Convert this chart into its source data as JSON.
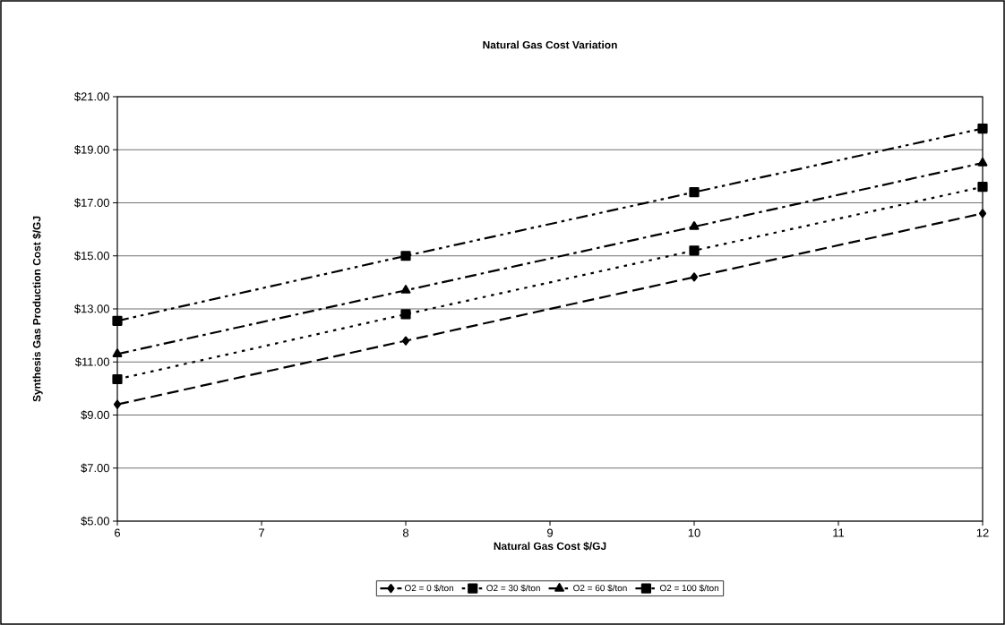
{
  "chart_data": {
    "type": "line",
    "title": "Natural Gas Cost Variation",
    "xlabel": "Natural Gas Cost $/GJ",
    "ylabel": "Synthesis Gas  Production Cost $/GJ",
    "x": [
      6,
      8,
      10,
      12
    ],
    "series": [
      {
        "name": "O2 = 0 $/ton",
        "color": "#000000",
        "marker": "diamond",
        "line_style": "dashed",
        "values": [
          9.4,
          11.8,
          14.2,
          16.6
        ]
      },
      {
        "name": "O2 = 30 $/ton",
        "color": "#000000",
        "marker": "square",
        "line_style": "dotted",
        "values": [
          10.35,
          12.8,
          15.2,
          17.6
        ]
      },
      {
        "name": "O2 = 60 $/ton",
        "color": "#000000",
        "marker": "triangle",
        "line_style": "dashdot",
        "values": [
          11.3,
          13.7,
          16.1,
          18.5
        ]
      },
      {
        "name": "O2 = 100 $/ton",
        "color": "#000000",
        "marker": "square",
        "line_style": "dashdotdot",
        "values": [
          12.55,
          15.0,
          17.4,
          19.8
        ]
      }
    ],
    "xlim": [
      6,
      12
    ],
    "xticks": [
      6,
      7,
      8,
      9,
      10,
      11,
      12
    ],
    "ylim": [
      5,
      21
    ],
    "yticks": [
      {
        "value": 5,
        "label": "$5.00"
      },
      {
        "value": 7,
        "label": "$7.00"
      },
      {
        "value": 9,
        "label": "$9.00"
      },
      {
        "value": 11,
        "label": "$11.00"
      },
      {
        "value": 13,
        "label": "$13.00"
      },
      {
        "value": 15,
        "label": "$15.00"
      },
      {
        "value": 17,
        "label": "$17.00"
      },
      {
        "value": 19,
        "label": "$19.00"
      },
      {
        "value": 21,
        "label": "$21.00"
      }
    ],
    "grid": "y",
    "legend": "bottom"
  }
}
